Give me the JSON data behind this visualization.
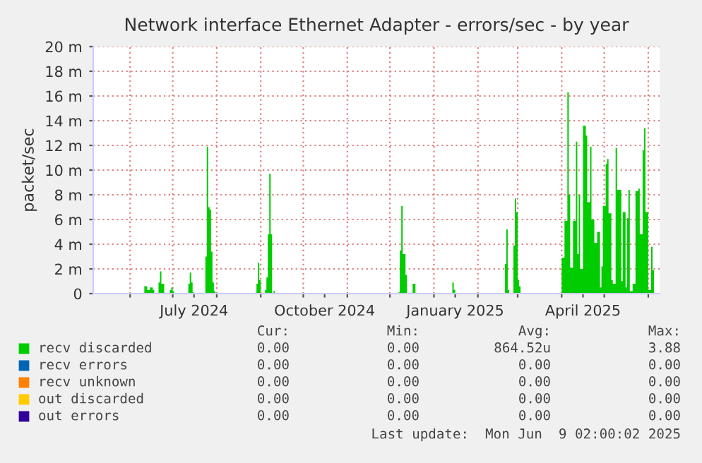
{
  "chart_data": {
    "type": "area",
    "title": "Network interface Ethernet Adapter - errors/sec - by year",
    "ylabel": "packet/sec",
    "xlim": [
      "2024-05-06",
      "2025-06-09"
    ],
    "xticks": [
      {
        "value": "2024-06-01",
        "label": null
      },
      {
        "value": "2024-07-01",
        "label": null
      },
      {
        "value": "2024-07-16",
        "label": "July 2024"
      },
      {
        "value": "2024-08-01",
        "label": null
      },
      {
        "value": "2024-09-01",
        "label": null
      },
      {
        "value": "2024-10-01",
        "label": null
      },
      {
        "value": "2024-10-16",
        "label": "October 2024"
      },
      {
        "value": "2024-11-01",
        "label": null
      },
      {
        "value": "2024-12-01",
        "label": null
      },
      {
        "value": "2025-01-01",
        "label": null
      },
      {
        "value": "2025-01-16",
        "label": "January 2025"
      },
      {
        "value": "2025-02-01",
        "label": null
      },
      {
        "value": "2025-03-01",
        "label": null
      },
      {
        "value": "2025-04-01",
        "label": null
      },
      {
        "value": "2025-04-16",
        "label": "April 2025"
      },
      {
        "value": "2025-05-01",
        "label": null
      },
      {
        "value": "2025-06-01",
        "label": null
      }
    ],
    "ylim": [
      0,
      20
    ],
    "yticks": [
      0,
      {
        "value": 2,
        "label": "2 m"
      },
      {
        "value": 4,
        "label": "4 m"
      },
      {
        "value": 6,
        "label": "6 m"
      },
      {
        "value": 8,
        "label": "8 m"
      },
      {
        "value": 10,
        "label": "10 m"
      },
      {
        "value": 12,
        "label": "12 m"
      },
      {
        "value": 14,
        "label": "14 m"
      },
      {
        "value": 16,
        "label": "16 m"
      },
      {
        "value": 18,
        "label": "18 m"
      },
      {
        "value": 20,
        "label": "20 m"
      }
    ],
    "grid": true,
    "legend": "bottom",
    "series": [
      {
        "name": "recv errors",
        "color": "#0066b3"
      },
      {
        "name": "recv unknown",
        "color": "#ff8000"
      },
      {
        "name": "out discarded",
        "color": "#ffcc00"
      },
      {
        "name": "out errors",
        "color": "#330099"
      },
      {
        "name": "recv discarded",
        "color": "#00cc00",
        "x": [
          "2024-05-06",
          "2024-06-10",
          "2024-06-11",
          "2024-06-13",
          "2024-06-15",
          "2024-06-17",
          "2024-06-18",
          "2024-06-20",
          "2024-06-21",
          "2024-06-22",
          "2024-06-23",
          "2024-06-25",
          "2024-06-28",
          "2024-06-29",
          "2024-06-30",
          "2024-07-01",
          "2024-07-02",
          "2024-07-11",
          "2024-07-12",
          "2024-07-13",
          "2024-07-14",
          "2024-07-15",
          "2024-07-16",
          "2024-07-23",
          "2024-07-24",
          "2024-07-25",
          "2024-07-26",
          "2024-07-27",
          "2024-07-28",
          "2024-07-29",
          "2024-07-30",
          "2024-07-31",
          "2024-08-28",
          "2024-08-29",
          "2024-08-30",
          "2024-08-31",
          "2024-09-01",
          "2024-09-03",
          "2024-09-04",
          "2024-09-05",
          "2024-09-06",
          "2024-09-07",
          "2024-09-08",
          "2024-09-09",
          "2024-09-10",
          "2024-09-11",
          "2024-12-06",
          "2024-12-07",
          "2024-12-08",
          "2024-12-09",
          "2024-12-10",
          "2024-12-11",
          "2024-12-12",
          "2024-12-13",
          "2024-12-16",
          "2024-12-17",
          "2024-12-18",
          "2024-12-19",
          "2025-01-13",
          "2025-01-14",
          "2025-01-15",
          "2025-01-16",
          "2025-02-19",
          "2025-02-20",
          "2025-02-21",
          "2025-02-22",
          "2025-02-23",
          "2025-02-25",
          "2025-02-26",
          "2025-02-27",
          "2025-02-28",
          "2025-03-01",
          "2025-03-02",
          "2025-03-03",
          "2025-03-31",
          "2025-04-01",
          "2025-04-03",
          "2025-04-05",
          "2025-04-06",
          "2025-04-07",
          "2025-04-09",
          "2025-04-11",
          "2025-04-12",
          "2025-04-13",
          "2025-04-14",
          "2025-04-16",
          "2025-04-18",
          "2025-04-19",
          "2025-04-21",
          "2025-04-22",
          "2025-04-24",
          "2025-04-26",
          "2025-04-28",
          "2025-04-29",
          "2025-04-30",
          "2025-05-02",
          "2025-05-03",
          "2025-05-04",
          "2025-05-06",
          "2025-05-07",
          "2025-05-09",
          "2025-05-10",
          "2025-05-12",
          "2025-05-13",
          "2025-05-14",
          "2025-05-16",
          "2025-05-17",
          "2025-05-18",
          "2025-05-19",
          "2025-05-21",
          "2025-05-23",
          "2025-05-25",
          "2025-05-26",
          "2025-05-28",
          "2025-05-29",
          "2025-05-30",
          "2025-06-01",
          "2025-06-03",
          "2025-06-04",
          "2025-06-05",
          "2025-06-09"
        ],
        "values": [
          0,
          0,
          0.6,
          0.3,
          0.5,
          0.3,
          0,
          0,
          0.9,
          1.8,
          0.8,
          0,
          0,
          0.3,
          0.5,
          0.2,
          0,
          0,
          0.8,
          1.7,
          0.9,
          0.1,
          0,
          0,
          3.0,
          11.9,
          7.0,
          6.8,
          3.4,
          0.9,
          0.2,
          0,
          0,
          0.8,
          2.5,
          1.1,
          0,
          0,
          0.3,
          1.3,
          4.8,
          9.7,
          4.8,
          0,
          0.2,
          0,
          0,
          0.1,
          3.5,
          7.1,
          3.2,
          3.2,
          1.5,
          0,
          0,
          0.8,
          0.8,
          0,
          0,
          0.9,
          0.3,
          0,
          0,
          2.4,
          5.2,
          0.3,
          0,
          0,
          3.9,
          7.7,
          6.6,
          1.1,
          0.6,
          0,
          0,
          2.9,
          5.9,
          16.3,
          8.0,
          2.1,
          5.9,
          12.3,
          3.2,
          8.0,
          2.0,
          13.6,
          12.8,
          7.4,
          11.9,
          6.0,
          4.1,
          5.0,
          0.5,
          2.2,
          7.1,
          10.5,
          10.9,
          6.5,
          1.1,
          0.8,
          11.8,
          8.4,
          8.4,
          1.0,
          6.6,
          0.5,
          6.1,
          8.4,
          0.2,
          0.8,
          8.3,
          8.5,
          4.8,
          11.6,
          13.4,
          6.6,
          0.3,
          3.8,
          1.9,
          0,
          0
        ]
      }
    ],
    "annotations": [
      "Cur:",
      "Min:",
      "Avg:",
      "Max:",
      "0.00",
      "0.00",
      "864.52u",
      "3.88",
      "0.00",
      "0.00",
      "0.00",
      "0.00",
      "0.00",
      "0.00",
      "0.00",
      "0.00",
      "0.00",
      "0.00",
      "0.00",
      "0.00",
      "0.00",
      "0.00",
      "0.00",
      "0.00",
      "Last update:  Mon Jun  9 02:00:02 2025"
    ]
  }
}
